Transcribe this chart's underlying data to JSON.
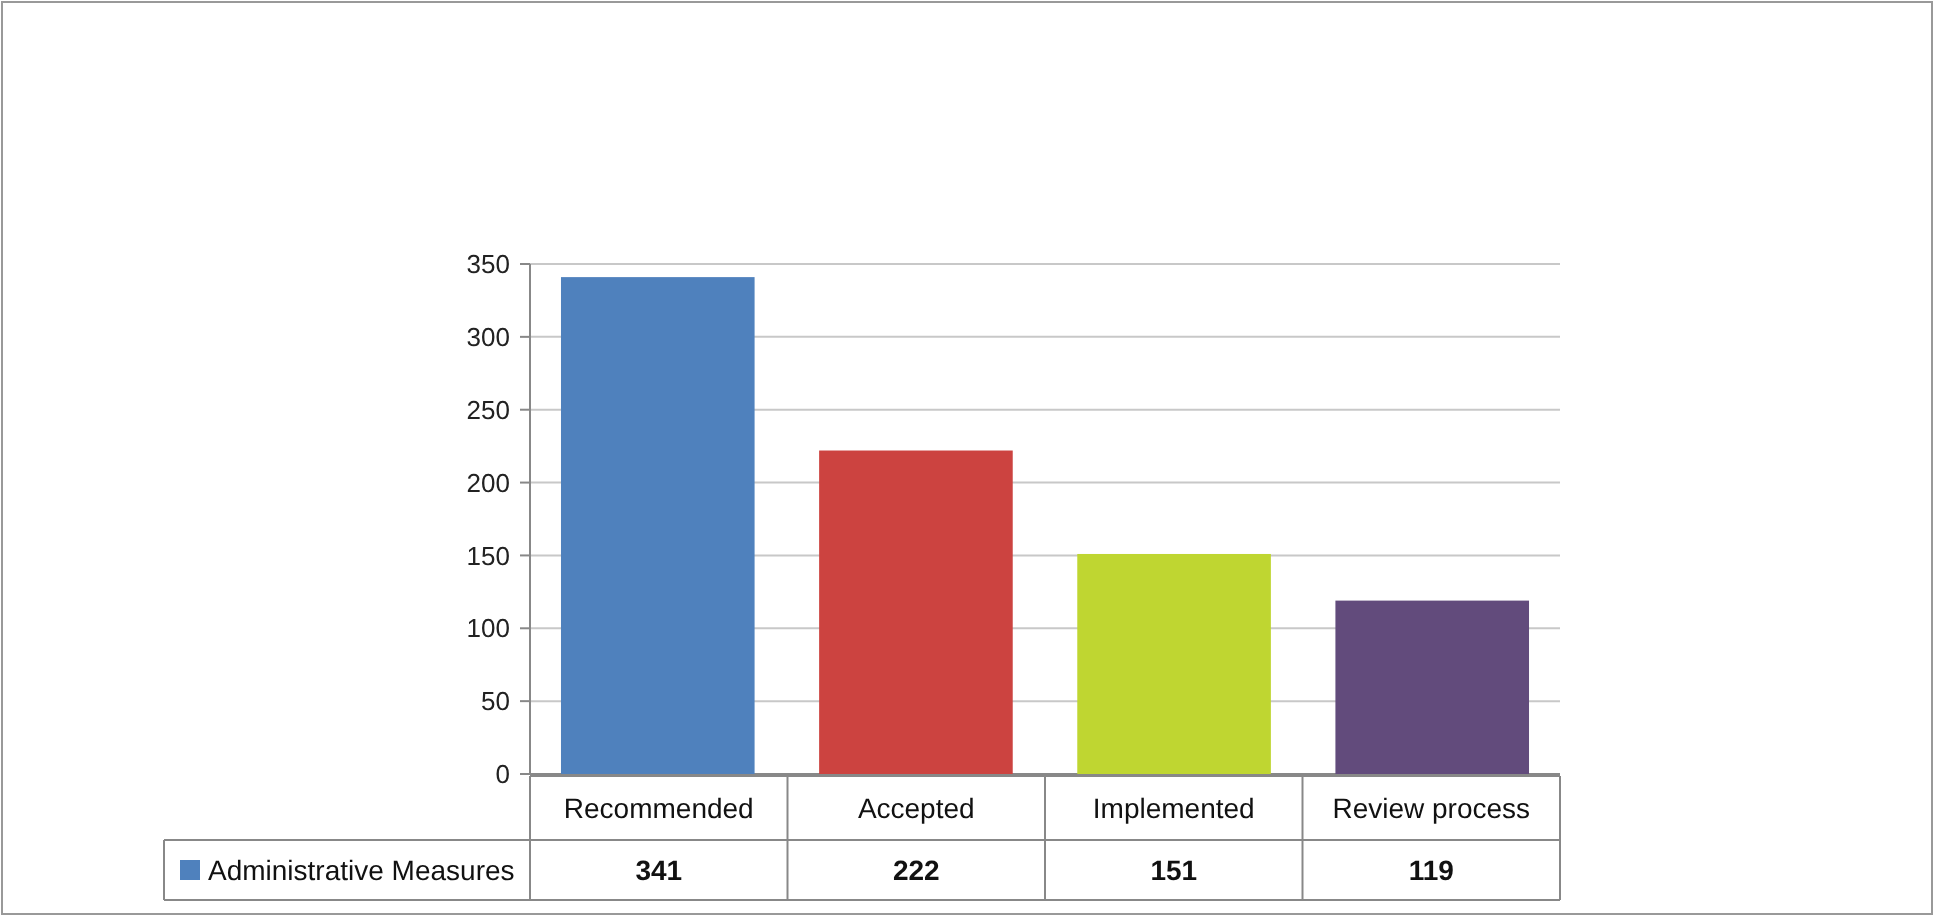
{
  "chart_data": {
    "type": "bar",
    "categories": [
      "Recommended",
      "Accepted",
      "Implemented",
      "Review process"
    ],
    "series": [
      {
        "name": "Administrative Measures",
        "colors": [
          "#4f81bd",
          "#cc4340",
          "#bfd631",
          "#624b7c"
        ],
        "values": [
          341,
          222,
          151,
          119
        ]
      }
    ],
    "ylim": [
      0,
      350
    ],
    "yticks": [
      0,
      50,
      100,
      150,
      200,
      250,
      300,
      350
    ],
    "grid": "y",
    "legend": "bottom",
    "data_labels": true
  }
}
